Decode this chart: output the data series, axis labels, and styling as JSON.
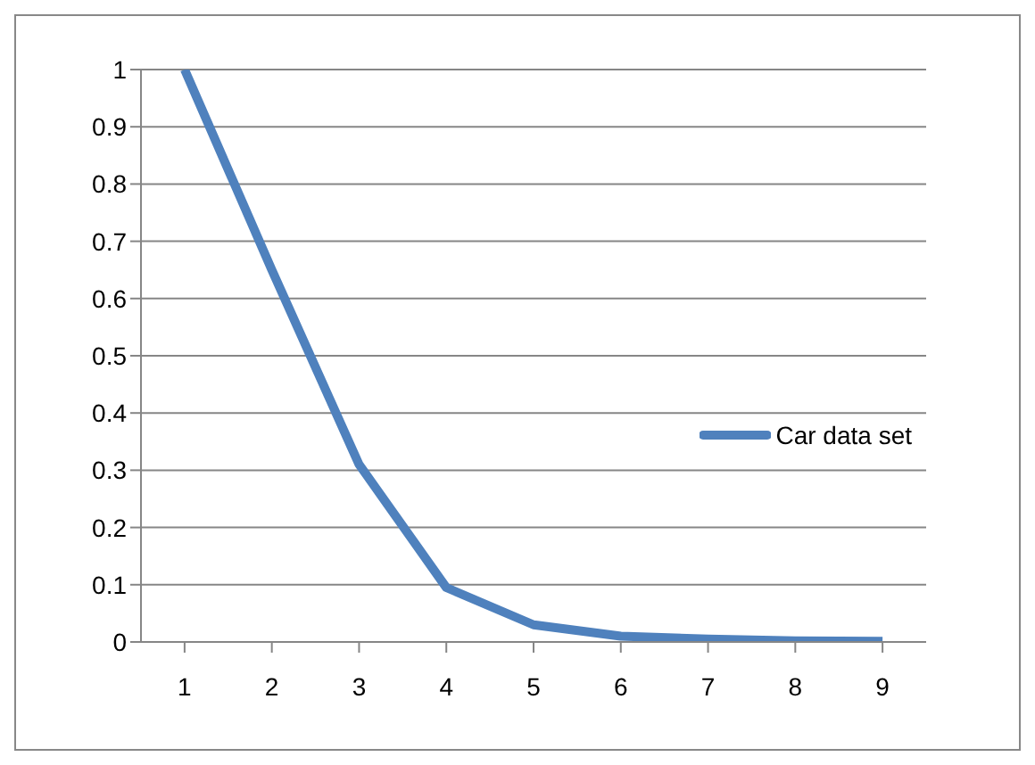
{
  "chart_data": {
    "type": "line",
    "categories": [
      "1",
      "2",
      "3",
      "4",
      "5",
      "6",
      "7",
      "8",
      "9"
    ],
    "series": [
      {
        "name": "Car data set",
        "color": "#4f81bd",
        "values": [
          1,
          0.65,
          0.31,
          0.095,
          0.03,
          0.01,
          0.005,
          0.002,
          0.001
        ]
      }
    ],
    "ylim": [
      0,
      1
    ],
    "yticks": [
      0,
      0.1,
      0.2,
      0.3,
      0.4,
      0.5,
      0.6,
      0.7,
      0.8,
      0.9,
      1
    ],
    "grid": "y",
    "legend": "right",
    "marker": "none"
  }
}
